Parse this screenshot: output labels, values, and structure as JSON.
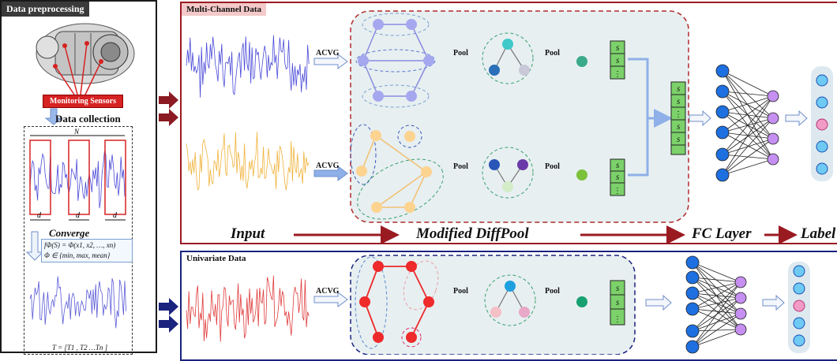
{
  "left": {
    "title": "Data preprocessing",
    "sensor_label": "Monitoring Sensors",
    "collection_label": "Data collection",
    "window_n": "N",
    "window_d": "d",
    "converge_label": "Converge",
    "formula_line1": "fΦ(S) = Φ(x1, x2, …, xn)",
    "formula_line2": "Φ ∈ {min, max, mean}",
    "t_formula": "T = [T1 , T2 …Tn ]"
  },
  "multi": {
    "title": "Multi-Channel Data",
    "acvg": "ACVG",
    "pool": "Pool",
    "flow_input": "Input",
    "flow_diffpool": "Modified DiffPool",
    "flow_fc": "FC Layer",
    "flow_label": "Label"
  },
  "uni": {
    "title": "Univariate Data",
    "acvg": "ACVG",
    "pool": "Pool"
  },
  "colors": {
    "dark_red": "#9a1a22",
    "navy": "#1a237e",
    "blue_signal": "#4a4ad8",
    "orange_signal": "#f0b23a",
    "red_signal": "#e03a3a",
    "node_lavender": "#a5a8ef",
    "node_orange": "#fdd390",
    "node_red": "#ee2a2a",
    "fc_blue": "#1e6fe0",
    "fc_purple": "#c68ff2",
    "label_light_blue": "#6fcaf3",
    "label_pink": "#f29bc5",
    "embed_green": "#7cd16a"
  },
  "icons": [
    "engine-illustration",
    "arrow-icon"
  ]
}
